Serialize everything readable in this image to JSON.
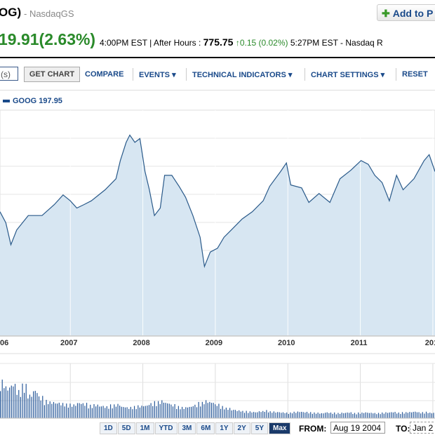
{
  "header": {
    "title": "OG)",
    "exchange": "- NasdaqGS",
    "add_button": "Add to P",
    "change": "19.91(2.63%)",
    "close_time": "4:00PM EST | After Hours :",
    "after_price": "775.75",
    "after_change": "0.15 (0.02%)",
    "after_time": "5:27PM EST - Nasdaq R"
  },
  "toolbar": {
    "symbol_placeholder": "(s)",
    "get_chart": "GET CHART",
    "compare": "COMPARE",
    "events": "EVENTS ▾",
    "indicators": "TECHNICAL INDICATORS ▾",
    "settings": "CHART SETTINGS ▾",
    "reset": "RESET"
  },
  "legend": {
    "label": "GOOG 197.95",
    "color": "#1a4a8a"
  },
  "chart_data": {
    "type": "area",
    "series": [
      {
        "name": "GOOG 197.95",
        "color": "#2a5a8a",
        "fill": "#d7e6f2",
        "points": [
          [
            2006.03,
            461
          ],
          [
            2006.11,
            420
          ],
          [
            2006.18,
            338
          ],
          [
            2006.26,
            393
          ],
          [
            2006.42,
            447
          ],
          [
            2006.61,
            447
          ],
          [
            2006.78,
            488
          ],
          [
            2006.9,
            524
          ],
          [
            2007.0,
            502
          ],
          [
            2007.09,
            475
          ],
          [
            2007.19,
            488
          ],
          [
            2007.29,
            502
          ],
          [
            2007.48,
            543
          ],
          [
            2007.63,
            584
          ],
          [
            2007.69,
            652
          ],
          [
            2007.77,
            720
          ],
          [
            2007.82,
            747
          ],
          [
            2007.89,
            720
          ],
          [
            2007.96,
            734
          ],
          [
            2008.03,
            611
          ],
          [
            2008.09,
            543
          ],
          [
            2008.16,
            447
          ],
          [
            2008.24,
            475
          ],
          [
            2008.3,
            597
          ],
          [
            2008.4,
            597
          ],
          [
            2008.5,
            556
          ],
          [
            2008.59,
            515
          ],
          [
            2008.69,
            447
          ],
          [
            2008.79,
            366
          ],
          [
            2008.85,
            257
          ],
          [
            2008.93,
            311
          ],
          [
            2009.03,
            325
          ],
          [
            2009.12,
            366
          ],
          [
            2009.22,
            393
          ],
          [
            2009.37,
            434
          ],
          [
            2009.51,
            461
          ],
          [
            2009.66,
            502
          ],
          [
            2009.75,
            556
          ],
          [
            2009.9,
            611
          ],
          [
            2009.98,
            643
          ],
          [
            2010.04,
            561
          ],
          [
            2010.19,
            550
          ],
          [
            2010.29,
            496
          ],
          [
            2010.43,
            529
          ],
          [
            2010.58,
            496
          ],
          [
            2010.72,
            584
          ],
          [
            2010.87,
            616
          ],
          [
            2011.01,
            652
          ],
          [
            2011.11,
            638
          ],
          [
            2011.2,
            597
          ],
          [
            2011.3,
            570
          ],
          [
            2011.4,
            502
          ],
          [
            2011.5,
            597
          ],
          [
            2011.59,
            543
          ],
          [
            2011.74,
            584
          ],
          [
            2011.88,
            652
          ],
          [
            2011.95,
            674
          ],
          [
            2012.03,
            611
          ]
        ]
      }
    ],
    "volume": [
      95,
      80,
      88,
      70,
      85,
      60,
      72,
      55,
      45,
      42,
      40,
      38,
      36,
      35,
      40,
      38,
      33,
      35,
      32,
      30,
      34,
      36,
      30,
      28,
      30,
      32,
      33,
      38,
      42,
      45,
      40,
      35,
      30,
      28,
      30,
      34,
      40,
      45,
      42,
      36,
      30,
      26,
      22,
      20,
      18,
      17,
      16,
      18,
      20,
      17,
      16,
      15,
      14,
      16,
      17,
      16,
      15,
      14,
      13,
      15,
      14,
      13,
      14,
      15,
      13,
      14,
      15,
      14,
      13,
      14,
      15,
      16,
      14,
      15,
      16,
      17,
      15,
      16,
      14
    ],
    "x_ticks": [
      "06",
      "2007",
      "2008",
      "2009",
      "2010",
      "2011",
      "201"
    ],
    "xlim": [
      2006.03,
      2012.03
    ],
    "ylim": [
      0,
      840
    ],
    "grid": true,
    "legend": "top-left"
  },
  "range_buttons": [
    "1D",
    "5D",
    "1M",
    "YTD",
    "3M",
    "6M",
    "1Y",
    "2Y",
    "5Y",
    "Max"
  ],
  "range_selected": "Max",
  "date_range": {
    "from_label": "FROM:",
    "from_value": "Aug 19 2004",
    "to_label": "TO:",
    "to_value": "Jan 2"
  }
}
